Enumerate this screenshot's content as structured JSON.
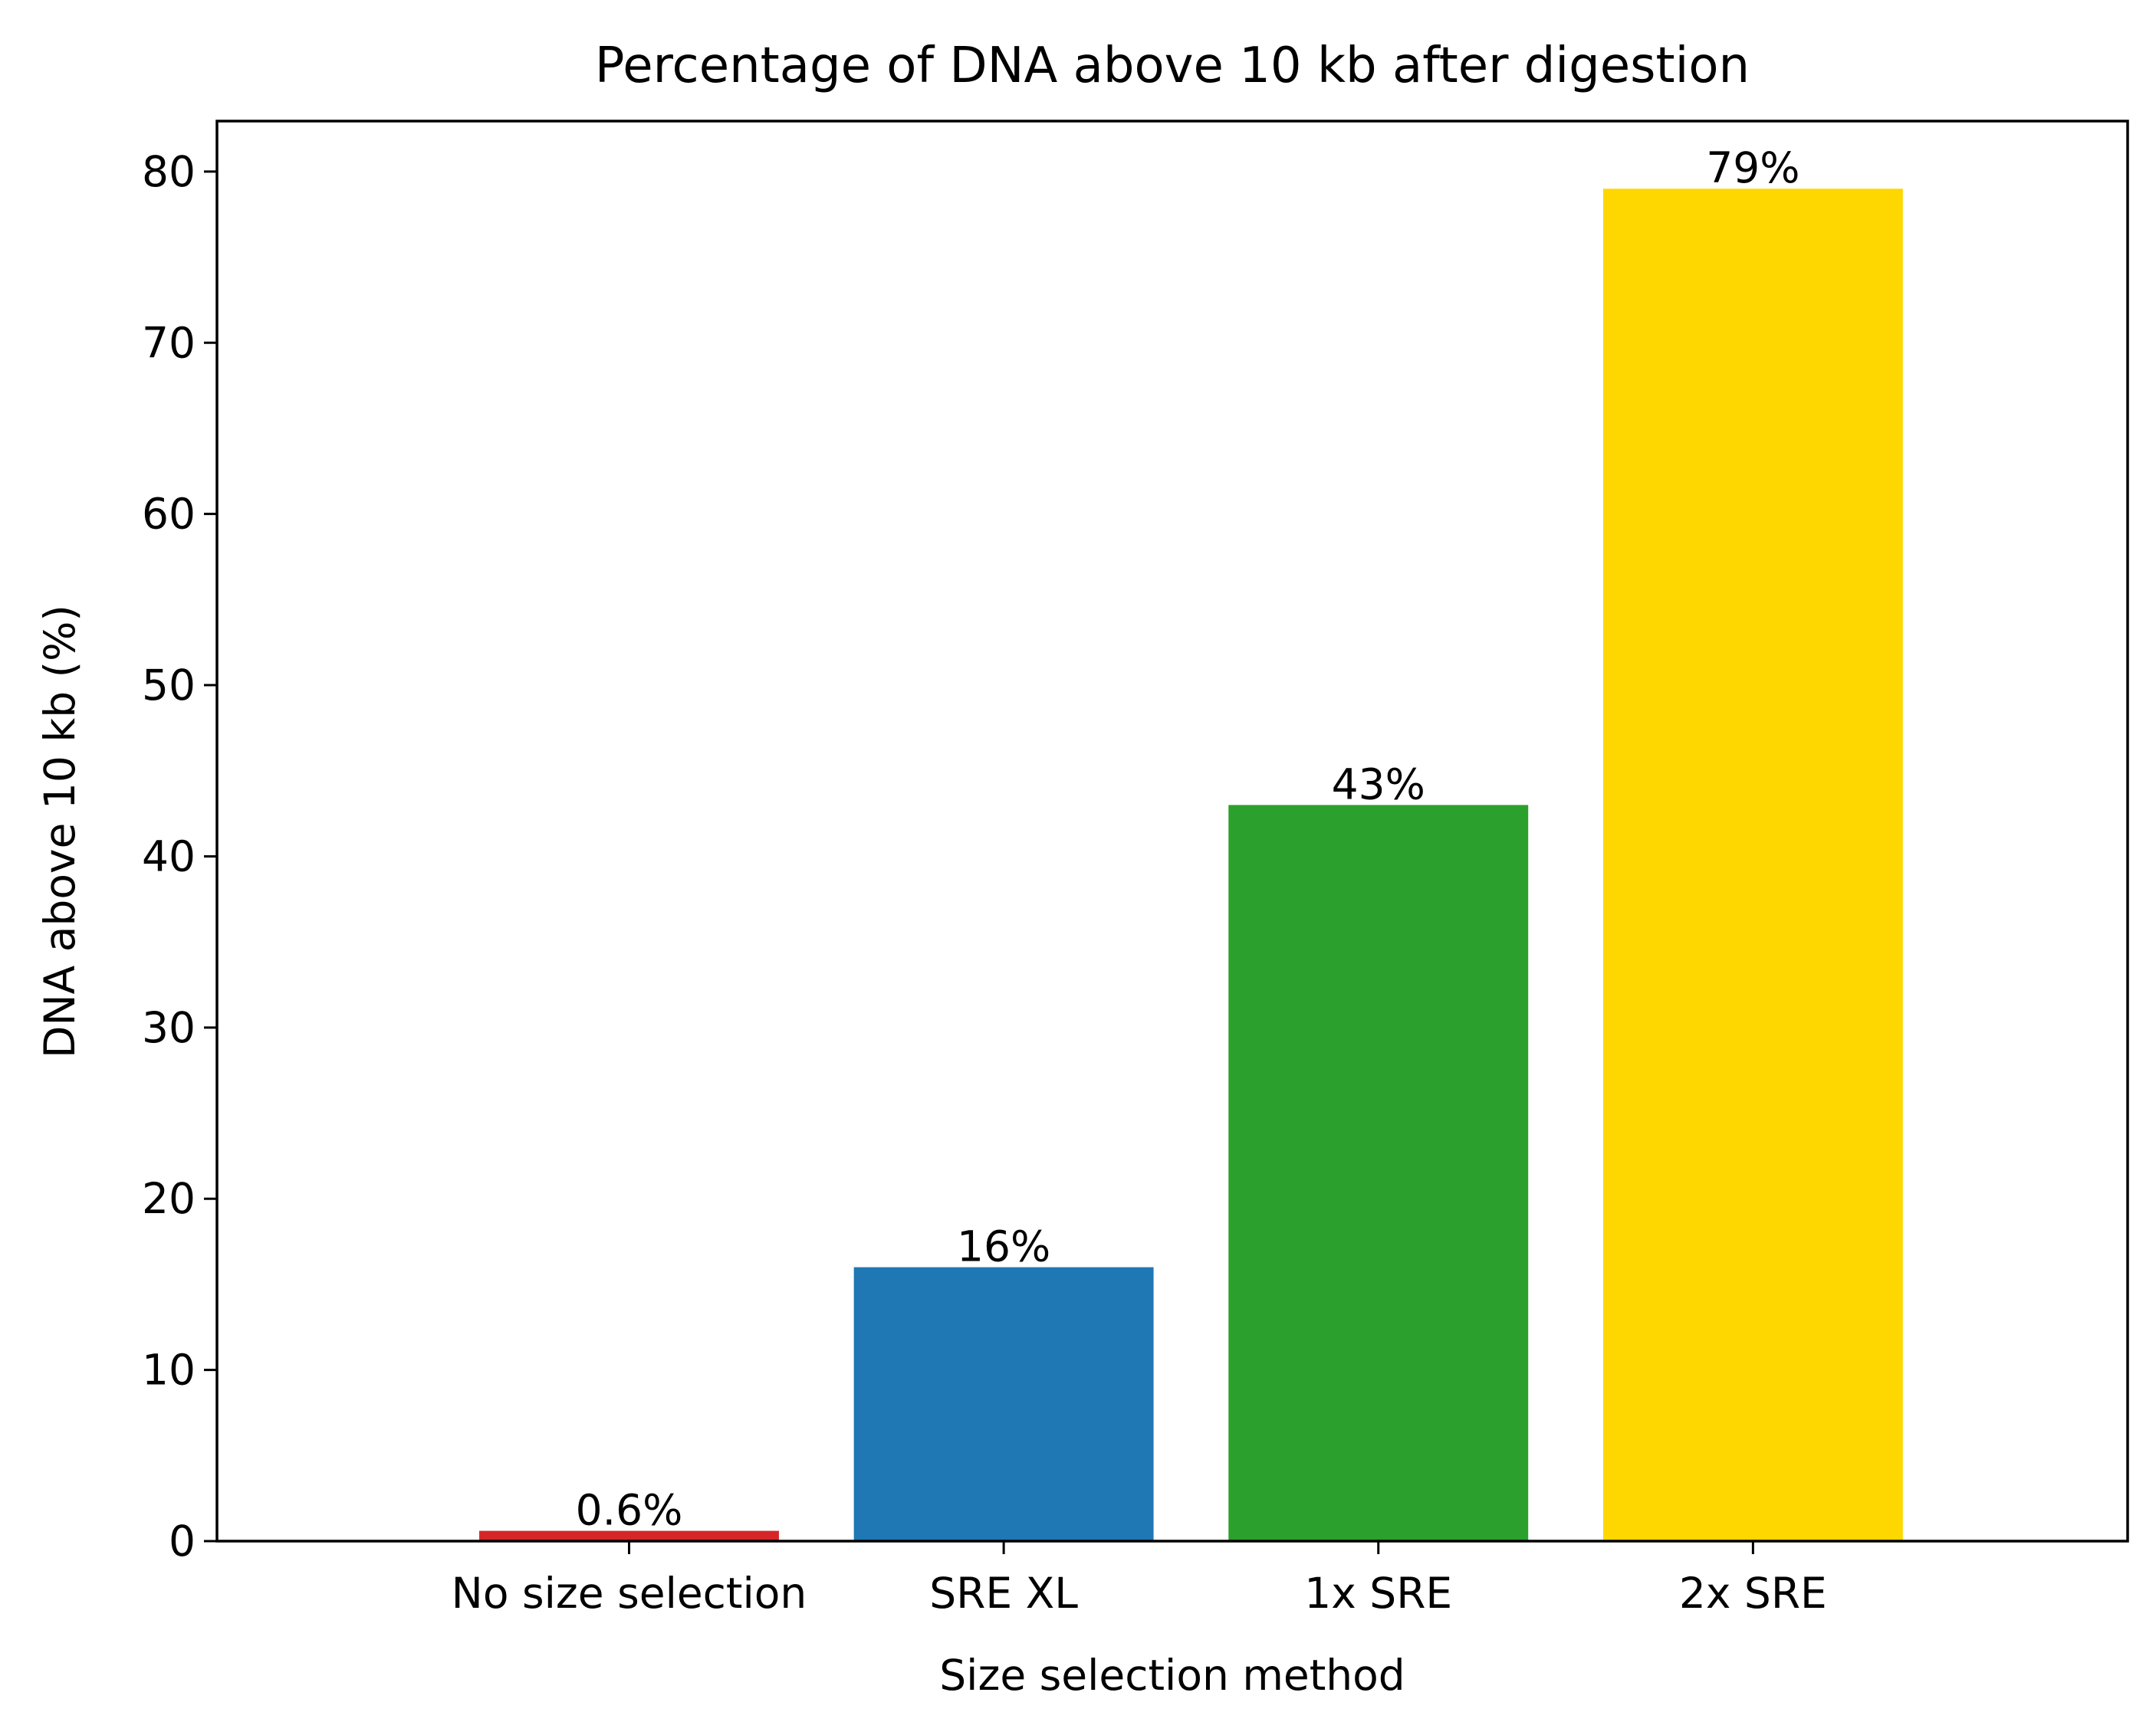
{
  "chart_data": {
    "type": "bar",
    "title": "Percentage of DNA above 10 kb after digestion",
    "xlabel": "Size selection method",
    "ylabel": "DNA above 10 kb (%)",
    "categories": [
      "No size selection",
      "SRE XL",
      "1x SRE",
      "2x SRE"
    ],
    "values": [
      0.6,
      16,
      43,
      79
    ],
    "data_labels": [
      "0.6%",
      "16%",
      "43%",
      "79%"
    ],
    "colors": [
      "#d62728",
      "#1f77b4",
      "#2ca02c",
      "#ffd700"
    ],
    "ylim": [
      0,
      82.95
    ],
    "yticks": [
      0,
      10,
      20,
      30,
      40,
      50,
      60,
      70,
      80
    ],
    "grid": false,
    "legend": "none"
  }
}
